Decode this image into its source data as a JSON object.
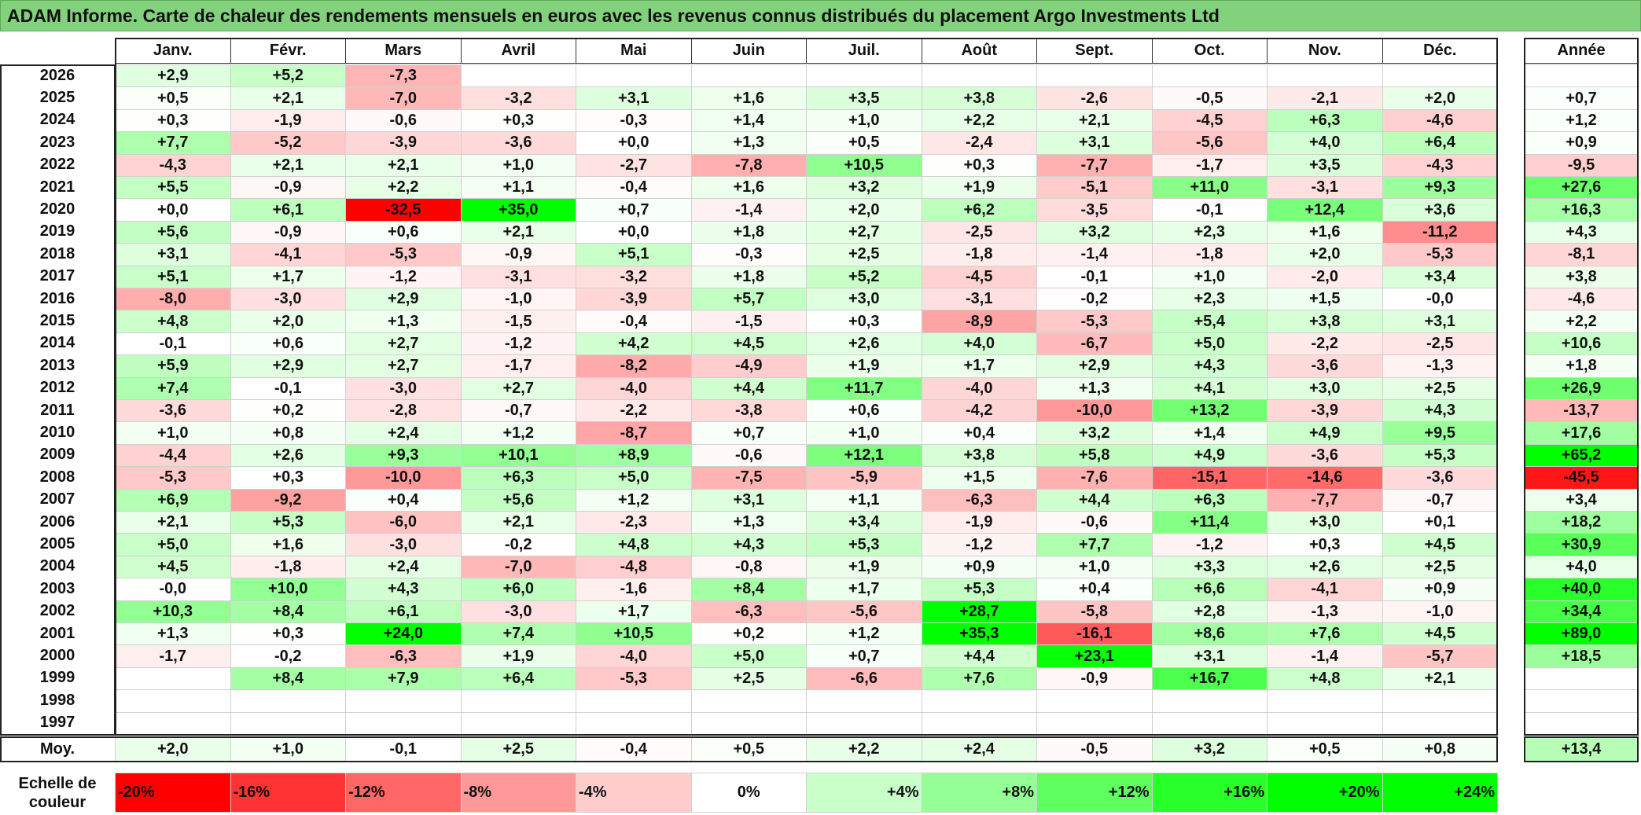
{
  "title": "ADAM Informe. Carte de chaleur des rendements mensuels en euros avec les revenus connus distribués du placement Argo Investments Ltd",
  "chart_data": {
    "type": "heatmap",
    "months": [
      "Janv.",
      "Févr.",
      "Mars",
      "Avril",
      "Mai",
      "Juin",
      "Juil.",
      "Août",
      "Sept.",
      "Oct.",
      "Nov.",
      "Déc."
    ],
    "annual_header": "Année",
    "average_label": "Moy.",
    "rows": [
      {
        "year": "2026",
        "values": [
          "+2,9",
          "+5,2",
          "-7,3",
          "",
          "",
          "",
          "",
          "",
          "",
          "",
          "",
          ""
        ],
        "annual": ""
      },
      {
        "year": "2025",
        "values": [
          "+0,5",
          "+2,1",
          "-7,0",
          "-3,2",
          "+3,1",
          "+1,6",
          "+3,5",
          "+3,8",
          "-2,6",
          "-0,5",
          "-2,1",
          "+2,0"
        ],
        "annual": "+0,7"
      },
      {
        "year": "2024",
        "values": [
          "+0,3",
          "-1,9",
          "-0,6",
          "+0,3",
          "-0,3",
          "+1,4",
          "+1,0",
          "+2,2",
          "+2,1",
          "-4,5",
          "+6,3",
          "-4,6"
        ],
        "annual": "+1,2"
      },
      {
        "year": "2023",
        "values": [
          "+7,7",
          "-5,2",
          "-3,9",
          "-3,6",
          "+0,0",
          "+1,3",
          "+0,5",
          "-2,4",
          "+3,1",
          "-5,6",
          "+4,0",
          "+6,4"
        ],
        "annual": "+0,9"
      },
      {
        "year": "2022",
        "values": [
          "-4,3",
          "+2,1",
          "+2,1",
          "+1,0",
          "-2,7",
          "-7,8",
          "+10,5",
          "+0,3",
          "-7,7",
          "-1,7",
          "+3,5",
          "-4,3"
        ],
        "annual": "-9,5"
      },
      {
        "year": "2021",
        "values": [
          "+5,5",
          "-0,9",
          "+2,2",
          "+1,1",
          "-0,4",
          "+1,6",
          "+3,2",
          "+1,9",
          "-5,1",
          "+11,0",
          "-3,1",
          "+9,3"
        ],
        "annual": "+27,6"
      },
      {
        "year": "2020",
        "values": [
          "+0,0",
          "+6,1",
          "-32,5",
          "+35,0",
          "+0,7",
          "-1,4",
          "+2,0",
          "+6,2",
          "-3,5",
          "-0,1",
          "+12,4",
          "+3,6"
        ],
        "annual": "+16,3"
      },
      {
        "year": "2019",
        "values": [
          "+5,6",
          "-0,9",
          "+0,6",
          "+2,1",
          "+0,0",
          "+1,8",
          "+2,7",
          "-2,5",
          "+3,2",
          "+2,3",
          "+1,6",
          "-11,2"
        ],
        "annual": "+4,3"
      },
      {
        "year": "2018",
        "values": [
          "+3,1",
          "-4,1",
          "-5,3",
          "-0,9",
          "+5,1",
          "-0,3",
          "+2,5",
          "-1,8",
          "-1,4",
          "-1,8",
          "+2,0",
          "-5,3"
        ],
        "annual": "-8,1"
      },
      {
        "year": "2017",
        "values": [
          "+5,1",
          "+1,7",
          "-1,2",
          "-3,1",
          "-3,2",
          "+1,8",
          "+5,2",
          "-4,5",
          "-0,1",
          "+1,0",
          "-2,0",
          "+3,4"
        ],
        "annual": "+3,8"
      },
      {
        "year": "2016",
        "values": [
          "-8,0",
          "-3,0",
          "+2,9",
          "-1,0",
          "-3,9",
          "+5,7",
          "+3,0",
          "-3,1",
          "-0,2",
          "+2,3",
          "+1,5",
          "-0,0"
        ],
        "annual": "-4,6"
      },
      {
        "year": "2015",
        "values": [
          "+4,8",
          "+2,0",
          "+1,3",
          "-1,5",
          "-0,4",
          "-1,5",
          "+0,3",
          "-8,9",
          "-5,3",
          "+5,4",
          "+3,8",
          "+3,1"
        ],
        "annual": "+2,2"
      },
      {
        "year": "2014",
        "values": [
          "-0,1",
          "+0,6",
          "+2,7",
          "-1,2",
          "+4,2",
          "+4,5",
          "+2,6",
          "+4,0",
          "-6,7",
          "+5,0",
          "-2,2",
          "-2,5"
        ],
        "annual": "+10,6"
      },
      {
        "year": "2013",
        "values": [
          "+5,9",
          "+2,9",
          "+2,7",
          "-1,7",
          "-8,2",
          "-4,9",
          "+1,9",
          "+1,7",
          "+2,9",
          "+4,3",
          "-3,6",
          "-1,3"
        ],
        "annual": "+1,8"
      },
      {
        "year": "2012",
        "values": [
          "+7,4",
          "-0,1",
          "-3,0",
          "+2,7",
          "-4,0",
          "+4,4",
          "+11,7",
          "-4,0",
          "+1,3",
          "+4,1",
          "+3,0",
          "+2,5"
        ],
        "annual": "+26,9"
      },
      {
        "year": "2011",
        "values": [
          "-3,6",
          "+0,2",
          "-2,8",
          "-0,7",
          "-2,2",
          "-3,8",
          "+0,6",
          "-4,2",
          "-10,0",
          "+13,2",
          "-3,9",
          "+4,3"
        ],
        "annual": "-13,7"
      },
      {
        "year": "2010",
        "values": [
          "+1,0",
          "+0,8",
          "+2,4",
          "+1,2",
          "-8,7",
          "+0,7",
          "+1,0",
          "+0,4",
          "+3,2",
          "+1,4",
          "+4,9",
          "+9,5"
        ],
        "annual": "+17,6"
      },
      {
        "year": "2009",
        "values": [
          "-4,4",
          "+2,6",
          "+9,3",
          "+10,1",
          "+8,9",
          "-0,6",
          "+12,1",
          "+3,8",
          "+5,8",
          "+4,9",
          "-3,6",
          "+5,3"
        ],
        "annual": "+65,2"
      },
      {
        "year": "2008",
        "values": [
          "-5,3",
          "+0,3",
          "-10,0",
          "+6,3",
          "+5,0",
          "-7,5",
          "-5,9",
          "+1,5",
          "-7,6",
          "-15,1",
          "-14,6",
          "-3,6"
        ],
        "annual": "-45,5"
      },
      {
        "year": "2007",
        "values": [
          "+6,9",
          "-9,2",
          "+0,4",
          "+5,6",
          "+1,2",
          "+3,1",
          "+1,1",
          "-6,3",
          "+4,4",
          "+6,3",
          "-7,7",
          "-0,7"
        ],
        "annual": "+3,4"
      },
      {
        "year": "2006",
        "values": [
          "+2,1",
          "+5,3",
          "-6,0",
          "+2,1",
          "-2,3",
          "+1,3",
          "+3,4",
          "-1,9",
          "-0,6",
          "+11,4",
          "+3,0",
          "+0,1"
        ],
        "annual": "+18,2"
      },
      {
        "year": "2005",
        "values": [
          "+5,0",
          "+1,6",
          "-3,0",
          "-0,2",
          "+4,8",
          "+4,3",
          "+5,3",
          "-1,2",
          "+7,7",
          "-1,2",
          "+0,3",
          "+4,5"
        ],
        "annual": "+30,9"
      },
      {
        "year": "2004",
        "values": [
          "+4,5",
          "-1,8",
          "+2,4",
          "-7,0",
          "-4,8",
          "-0,8",
          "+1,9",
          "+0,9",
          "+1,0",
          "+3,3",
          "+2,6",
          "+2,5"
        ],
        "annual": "+4,0"
      },
      {
        "year": "2003",
        "values": [
          "-0,0",
          "+10,0",
          "+4,3",
          "+6,0",
          "-1,6",
          "+8,4",
          "+1,7",
          "+5,3",
          "+0,4",
          "+6,6",
          "-4,1",
          "+0,9"
        ],
        "annual": "+40,0"
      },
      {
        "year": "2002",
        "values": [
          "+10,3",
          "+8,4",
          "+6,1",
          "-3,0",
          "+1,7",
          "-6,3",
          "-5,6",
          "+28,7",
          "-5,8",
          "+2,8",
          "-1,3",
          "-1,0"
        ],
        "annual": "+34,4"
      },
      {
        "year": "2001",
        "values": [
          "+1,3",
          "+0,3",
          "+24,0",
          "+7,4",
          "+10,5",
          "+0,2",
          "+1,2",
          "+35,3",
          "-16,1",
          "+8,6",
          "+7,6",
          "+4,5"
        ],
        "annual": "+89,0"
      },
      {
        "year": "2000",
        "values": [
          "-1,7",
          "-0,2",
          "-6,3",
          "+1,9",
          "-4,0",
          "+5,0",
          "+0,7",
          "+4,4",
          "+23,1",
          "+3,1",
          "-1,4",
          "-5,7"
        ],
        "annual": "+18,5"
      },
      {
        "year": "1999",
        "values": [
          "",
          "+8,4",
          "+7,9",
          "+6,4",
          "-5,3",
          "+2,5",
          "-6,6",
          "+7,6",
          "-0,9",
          "+16,7",
          "+4,8",
          "+2,1"
        ],
        "annual": ""
      },
      {
        "year": "1998",
        "values": [
          "",
          "",
          "",
          "",
          "",
          "",
          "",
          "",
          "",
          "",
          "",
          ""
        ],
        "annual": ""
      },
      {
        "year": "1997",
        "values": [
          "",
          "",
          "",
          "",
          "",
          "",
          "",
          "",
          "",
          "",
          "",
          ""
        ],
        "annual": ""
      }
    ],
    "average": {
      "values": [
        "+2,0",
        "+1,0",
        "-0,1",
        "+2,5",
        "-0,4",
        "+0,5",
        "+2,2",
        "+2,4",
        "-0,5",
        "+3,2",
        "+0,5",
        "+0,8"
      ],
      "annual": "+13,4"
    },
    "color_scale": {
      "label": "Echelle de couleur",
      "stops": [
        "-20%",
        "-16%",
        "-12%",
        "-8%",
        "-4%",
        "0%",
        "+4%",
        "+8%",
        "+12%",
        "+16%",
        "+20%",
        "+24%"
      ],
      "negative_color": "#ff0000",
      "positive_color": "#00ff00",
      "neutral_color": "#ffffff"
    }
  }
}
